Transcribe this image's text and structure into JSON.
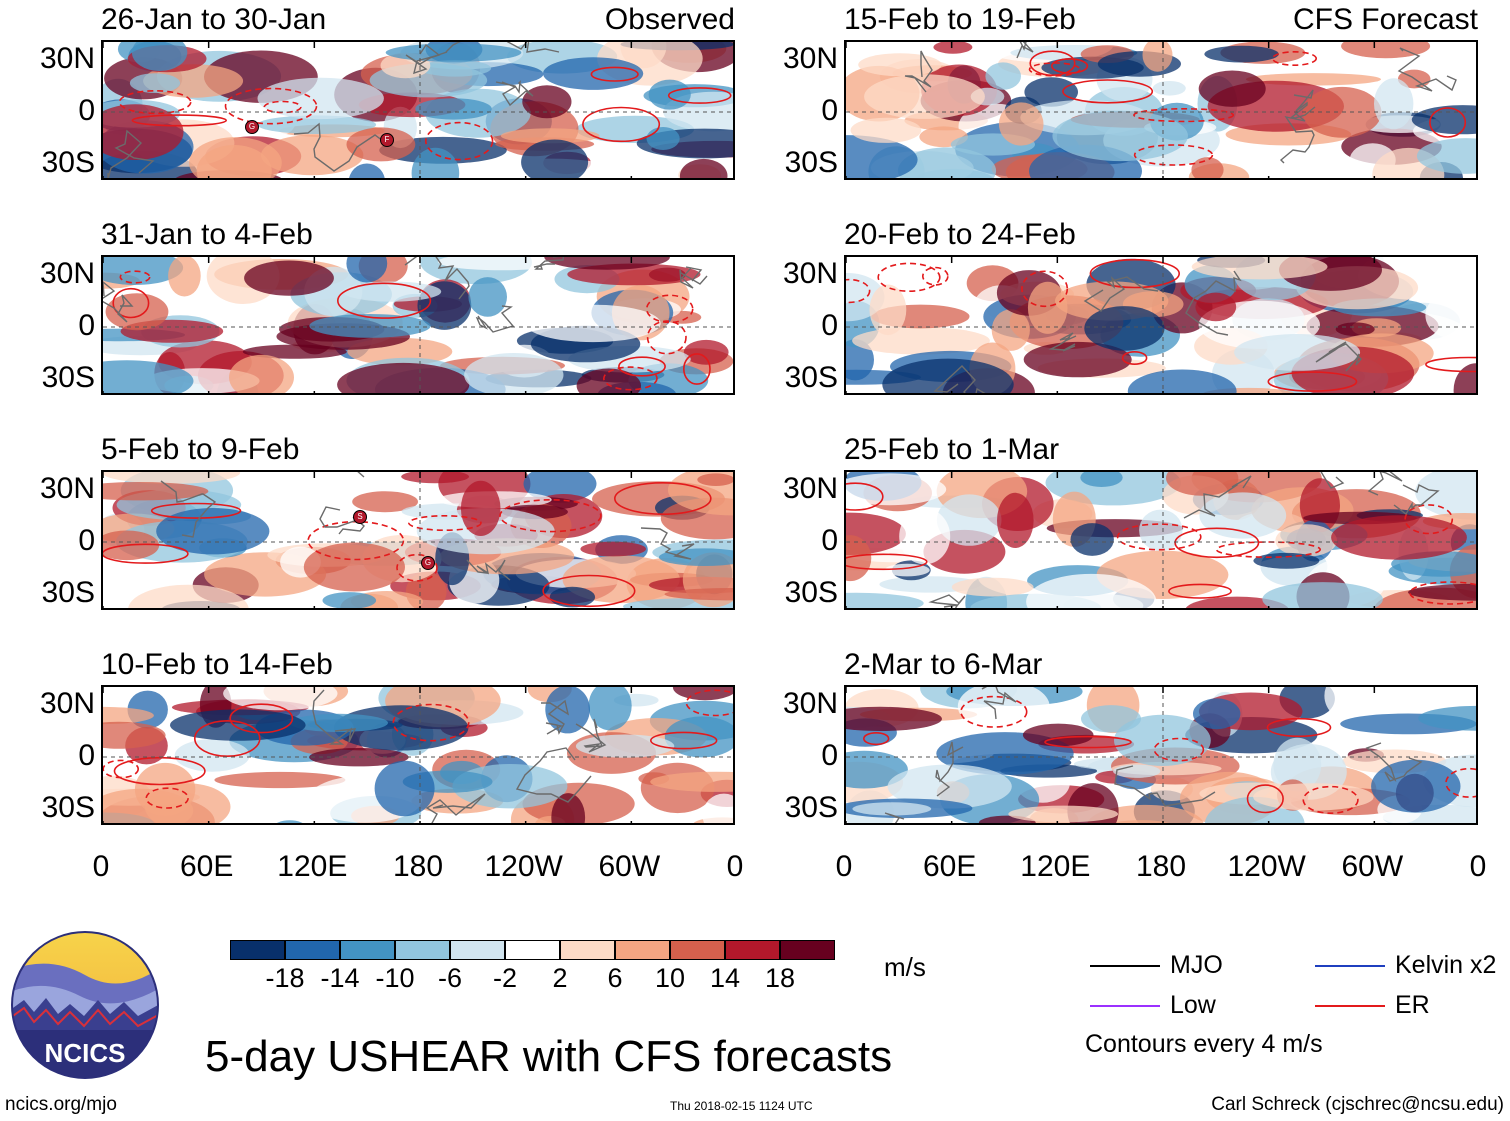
{
  "panels": [
    {
      "title": "26-Jan to 30-Jan",
      "tag": "Observed"
    },
    {
      "title": "31-Jan to 4-Feb",
      "tag": ""
    },
    {
      "title": "5-Feb to 9-Feb",
      "tag": ""
    },
    {
      "title": "10-Feb to 14-Feb",
      "tag": ""
    },
    {
      "title": "15-Feb to 19-Feb",
      "tag": "CFS Forecast"
    },
    {
      "title": "20-Feb to 24-Feb",
      "tag": ""
    },
    {
      "title": "25-Feb to 1-Mar",
      "tag": ""
    },
    {
      "title": "2-Mar to 6-Mar",
      "tag": ""
    }
  ],
  "lat_labels": [
    "30N",
    "0",
    "30S"
  ],
  "lon_labels": [
    "0",
    "60E",
    "120E",
    "180",
    "120W",
    "60W",
    "0"
  ],
  "colorbar": {
    "colors": [
      "#08306b",
      "#2166ac",
      "#4393c3",
      "#92c5de",
      "#d1e5f0",
      "#ffffff",
      "#fddbc7",
      "#f4a582",
      "#d6604d",
      "#b2182b",
      "#67001f"
    ],
    "labels": [
      "-18",
      "-14",
      "-10",
      "-6",
      "-2",
      "2",
      "6",
      "10",
      "14",
      "18"
    ],
    "units": "m/s"
  },
  "title": "5-day USHEAR with CFS forecasts",
  "legend": {
    "items": [
      {
        "label": "MJO",
        "color": "#000000"
      },
      {
        "label": "Kelvin x2",
        "color": "#1f3fbf"
      },
      {
        "label": "Low",
        "color": "#9b30ff"
      },
      {
        "label": "ER",
        "color": "#e31a1c"
      }
    ],
    "note": "Contours every 4 m/s"
  },
  "logo_text": "NCICS",
  "footer": {
    "url": "ncics.org/mjo",
    "timestamp": "Thu 2018-02-15 1124 UTC",
    "author": "Carl Schreck (cjschrec@ncsu.edu)"
  },
  "storm_markers": [
    {
      "panel": 0,
      "letter": "G"
    },
    {
      "panel": 0,
      "letter": "F"
    },
    {
      "panel": 2,
      "letter": "S"
    },
    {
      "panel": 2,
      "letter": "G"
    }
  ]
}
